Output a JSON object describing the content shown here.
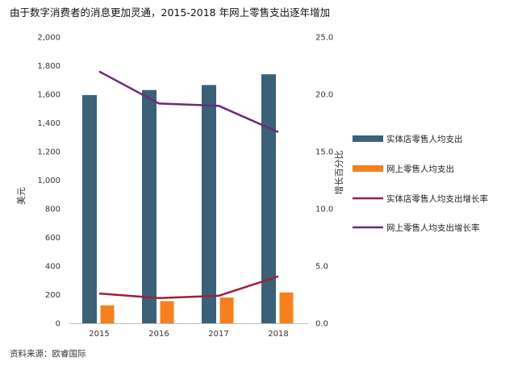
{
  "chart_data": {
    "type": "bar",
    "title": "由于数字消费者的消息更加灵通，2015-2018 年网上零售支出逐年增加",
    "categories": [
      "2015",
      "2016",
      "2017",
      "2018"
    ],
    "ylabel": "美元",
    "ylabel_right": "增长百分比",
    "ylim": [
      0,
      2000
    ],
    "ylim_right": [
      0,
      25
    ],
    "yticks": [
      "0",
      "200",
      "400",
      "600",
      "800",
      "1,000",
      "1,200",
      "1,400",
      "1,600",
      "1,800",
      "2,000"
    ],
    "yticks_right": [
      "0.0",
      "5.0",
      "10.0",
      "15.0",
      "20.0",
      "25.0"
    ],
    "grid": false,
    "legend_position": "right",
    "series": [
      {
        "name": "实体店零售人均支出",
        "kind": "bar",
        "axis": "left",
        "color": "#3a6177",
        "values": [
          1595,
          1630,
          1665,
          1740
        ]
      },
      {
        "name": "网上零售人均支出",
        "kind": "bar",
        "axis": "left",
        "color": "#f7801e",
        "values": [
          125,
          155,
          180,
          215
        ]
      },
      {
        "name": "实体店零售人均支出增长率",
        "kind": "line",
        "axis": "right",
        "color": "#9e1f3b",
        "values": [
          2.6,
          2.2,
          2.4,
          4.1
        ]
      },
      {
        "name": "网上零售人均支出增长率",
        "kind": "line",
        "axis": "right",
        "color": "#6a2c76",
        "values": [
          22.0,
          19.2,
          19.0,
          16.7
        ]
      }
    ],
    "source": "资料来源：欧睿国际"
  }
}
